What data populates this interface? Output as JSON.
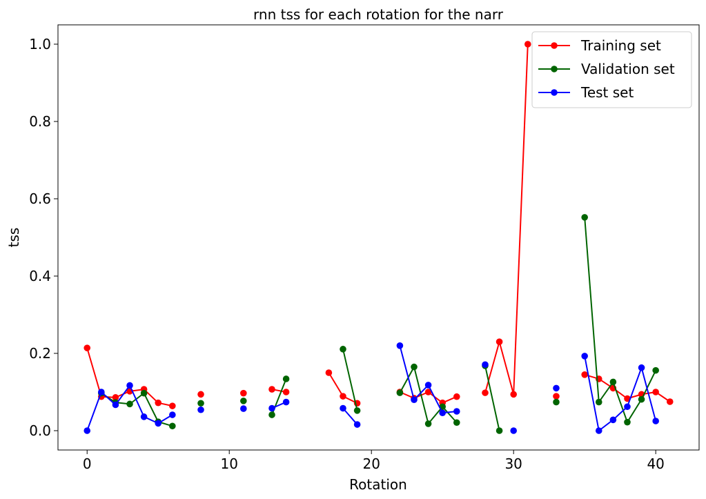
{
  "chart_data": {
    "type": "line",
    "title": "rnn tss for each rotation for the narr",
    "xlabel": "Rotation",
    "ylabel": "tss",
    "xlim": [
      -2.05,
      43.05
    ],
    "ylim": [
      -0.05,
      1.05
    ],
    "xticks": [
      0,
      10,
      20,
      30,
      40
    ],
    "xtick_labels": [
      "0",
      "10",
      "20",
      "30",
      "40"
    ],
    "yticks": [
      0.0,
      0.2,
      0.4,
      0.6,
      0.8,
      1.0
    ],
    "ytick_labels": [
      "0.0",
      "0.2",
      "0.4",
      "0.6",
      "0.8",
      "1.0"
    ],
    "grid": false,
    "legend_position": "top-right",
    "x": [
      0,
      1,
      2,
      3,
      4,
      5,
      6,
      7,
      8,
      9,
      10,
      11,
      12,
      13,
      14,
      15,
      16,
      17,
      18,
      19,
      20,
      21,
      22,
      23,
      24,
      25,
      26,
      27,
      28,
      29,
      30,
      31,
      32,
      33,
      34,
      35,
      36,
      37,
      38,
      39,
      40,
      41
    ],
    "series": [
      {
        "name": "Training set",
        "color": "#ff0000",
        "values": [
          0.214,
          0.088,
          0.086,
          0.102,
          0.107,
          0.072,
          0.064,
          null,
          0.094,
          null,
          null,
          0.097,
          null,
          0.107,
          0.1,
          null,
          null,
          0.15,
          0.089,
          0.071,
          null,
          null,
          0.1,
          0.084,
          0.1,
          0.072,
          0.088,
          null,
          0.098,
          0.23,
          0.094,
          1.0,
          null,
          0.089,
          null,
          0.145,
          0.134,
          0.11,
          0.083,
          0.094,
          0.1,
          0.075
        ]
      },
      {
        "name": "Validation set",
        "color": "#006400",
        "values": [
          null,
          0.097,
          0.073,
          0.069,
          0.097,
          0.023,
          0.012,
          null,
          0.071,
          null,
          null,
          0.077,
          null,
          0.041,
          0.134,
          null,
          null,
          null,
          0.211,
          0.052,
          null,
          null,
          0.098,
          0.165,
          0.018,
          0.062,
          0.021,
          null,
          0.168,
          0.0,
          null,
          null,
          null,
          0.074,
          null,
          0.552,
          0.074,
          0.126,
          0.022,
          0.081,
          0.156,
          null
        ]
      },
      {
        "name": "Test set",
        "color": "#0000ff",
        "values": [
          0.0,
          0.1,
          0.067,
          0.117,
          0.036,
          0.019,
          0.041,
          null,
          0.054,
          null,
          null,
          0.057,
          null,
          0.058,
          0.074,
          null,
          null,
          null,
          0.058,
          0.016,
          null,
          null,
          0.22,
          0.08,
          0.118,
          0.046,
          0.05,
          null,
          0.171,
          null,
          0.0,
          null,
          null,
          0.11,
          null,
          0.193,
          0.0,
          0.028,
          0.062,
          0.163,
          0.025,
          null
        ]
      }
    ]
  }
}
